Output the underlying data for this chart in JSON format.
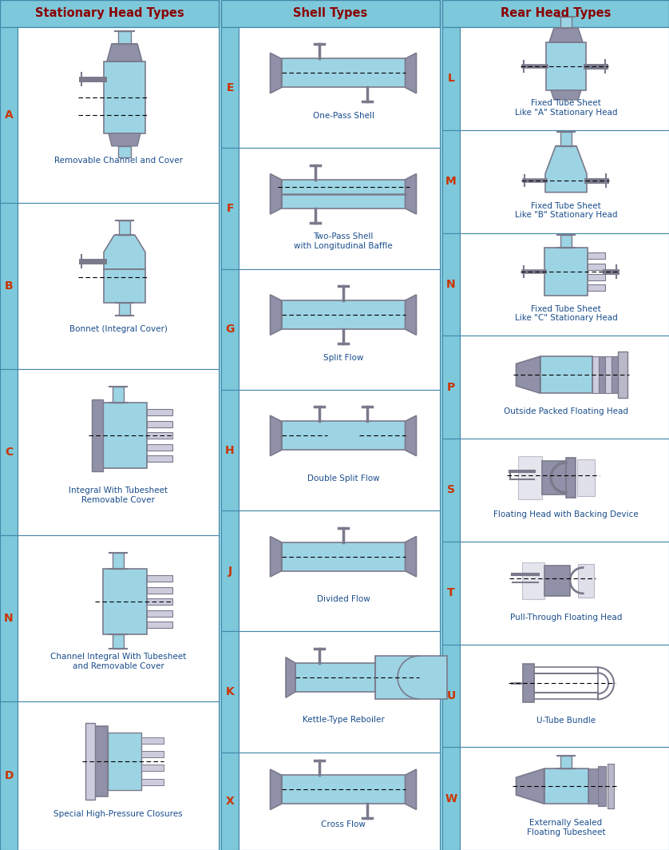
{
  "bg_color": "#8ecfdf",
  "header_bg": "#7dc8da",
  "cell_bg": "#ffffff",
  "header_text_color": "#8b0000",
  "label_color": "#1a4d8c",
  "letter_color": "#cc3300",
  "border_color": "#4488aa",
  "dark_gray": "#7a7a8c",
  "med_gray": "#9090a8",
  "light_gray": "#b8b8c8",
  "lighter_gray": "#ccccdd",
  "shell_blue": "#9dd4e4",
  "col1_header": "Stationary Head Types",
  "col2_header": "Shell Types",
  "col3_header": "Rear Head Types",
  "col1_letters": [
    "A",
    "B",
    "C",
    "N",
    "D"
  ],
  "col2_letters": [
    "E",
    "F",
    "G",
    "H",
    "J",
    "K",
    "X"
  ],
  "col3_letters": [
    "L",
    "M",
    "N",
    "P",
    "S",
    "T",
    "U",
    "W"
  ],
  "col1_labels": [
    "Removable Channel and Cover",
    "Bonnet (Integral Cover)",
    "Integral With Tubesheet\nRemovable Cover",
    "Channel Integral With Tubesheet\nand Removable Cover",
    "Special High-Pressure Closures"
  ],
  "col2_labels": [
    "One-Pass Shell",
    "Two-Pass Shell\nwith Longitudinal Baffle",
    "Split Flow",
    "Double Split Flow",
    "Divided Flow",
    "Kettle-Type Reboiler",
    "Cross Flow"
  ],
  "col3_labels": [
    "Fixed Tube Sheet\nLike \"A\" Stationary Head",
    "Fixed Tube Sheet\nLike \"B\" Stationary Head",
    "Fixed Tube Sheet\nLike \"C\" Stationary Head",
    "Outside Packed Floating Head",
    "Floating Head with Backing Device",
    "Pull-Through Floating Head",
    "U-Tube Bundle",
    "Externally Sealed\nFloating Tubesheet"
  ]
}
